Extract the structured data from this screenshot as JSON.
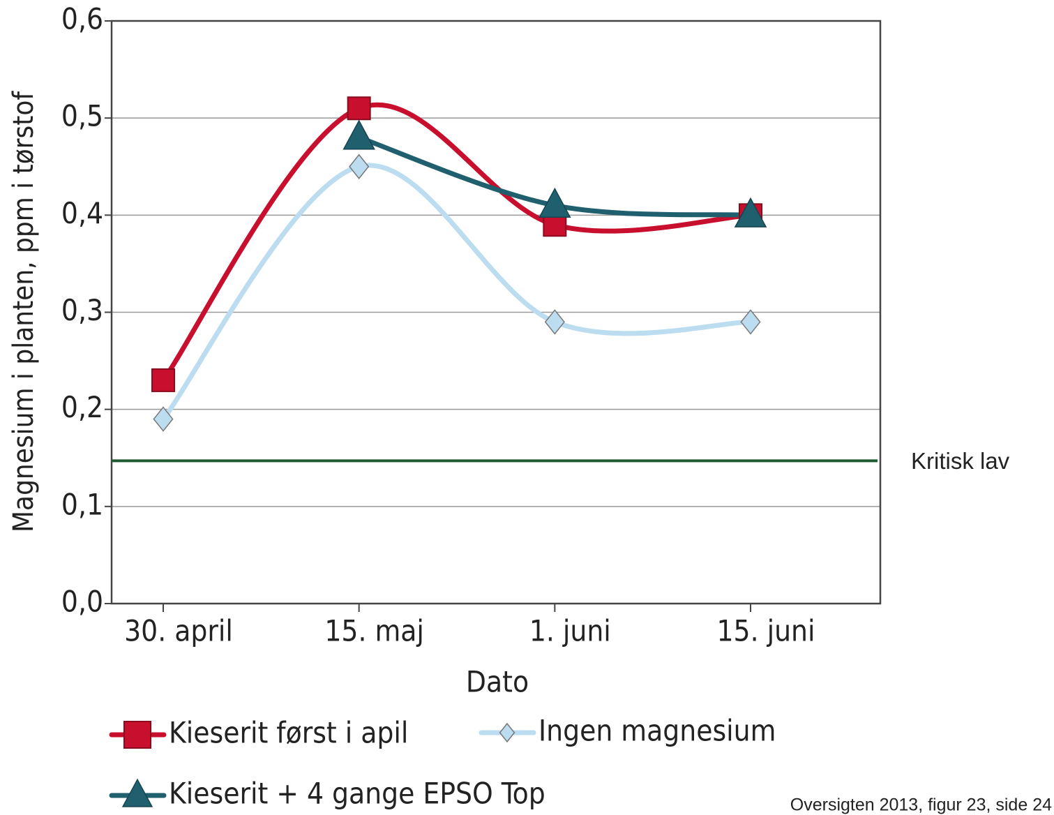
{
  "chart_data": {
    "type": "line",
    "y_label": "Magnesium i planten, ppm i tørstof",
    "x_label": "Dato",
    "categories": [
      "30. april",
      "15. maj",
      "1. juni",
      "15. juni"
    ],
    "series": [
      {
        "name": "Ingen magnesium",
        "color": "#bcdcf0",
        "marker": "diamond",
        "values": [
          0.19,
          0.45,
          0.29,
          0.29
        ]
      },
      {
        "name": "Kieserit først i apil",
        "color": "#c8102e",
        "marker": "square",
        "values": [
          0.23,
          0.51,
          0.39,
          0.4
        ]
      },
      {
        "name": "Kieserit + 4 gange EPSO Top",
        "color": "#1f5f6e",
        "marker": "triangle",
        "values": [
          null,
          0.48,
          0.41,
          0.4
        ]
      }
    ],
    "ylim": [
      0,
      0.6
    ],
    "yticks": [
      {
        "value": 0,
        "label": "0,0"
      },
      {
        "value": 0.1,
        "label": "0,1"
      },
      {
        "value": 0.2,
        "label": "0,2"
      },
      {
        "value": 0.3,
        "label": "0,3"
      },
      {
        "value": 0.4,
        "label": "0,4"
      },
      {
        "value": 0.5,
        "label": "0,5"
      },
      {
        "value": 0.6,
        "label": "0,6"
      }
    ],
    "grid": true,
    "reference_line": {
      "value": 0.147,
      "label": "Kritisk lav",
      "color": "#1e5a32"
    },
    "source": "Oversigten 2013, figur 23, side 24"
  }
}
